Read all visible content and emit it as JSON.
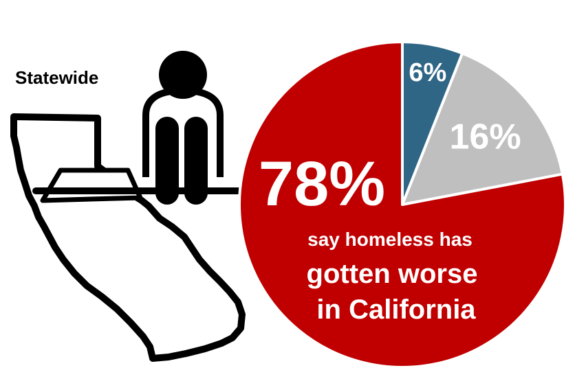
{
  "region_label": "Statewide",
  "icon": "california-homeless-person-icon",
  "colors": {
    "worse": "#C00000",
    "gray": "#BFBFBF",
    "blue": "#2F6585",
    "text_light": "#FFFFFF",
    "text_dark": "#000000"
  },
  "chart_data": {
    "type": "pie",
    "slices": [
      {
        "value": 6,
        "label": "6%",
        "color": "#2F6585"
      },
      {
        "value": 16,
        "label": "16%",
        "color": "#BFBFBF"
      },
      {
        "value": 78,
        "label": "78%",
        "color": "#C00000"
      }
    ],
    "annotation": {
      "line1": "say homeless has",
      "line2": "gotten worse",
      "line3": "in California"
    }
  }
}
